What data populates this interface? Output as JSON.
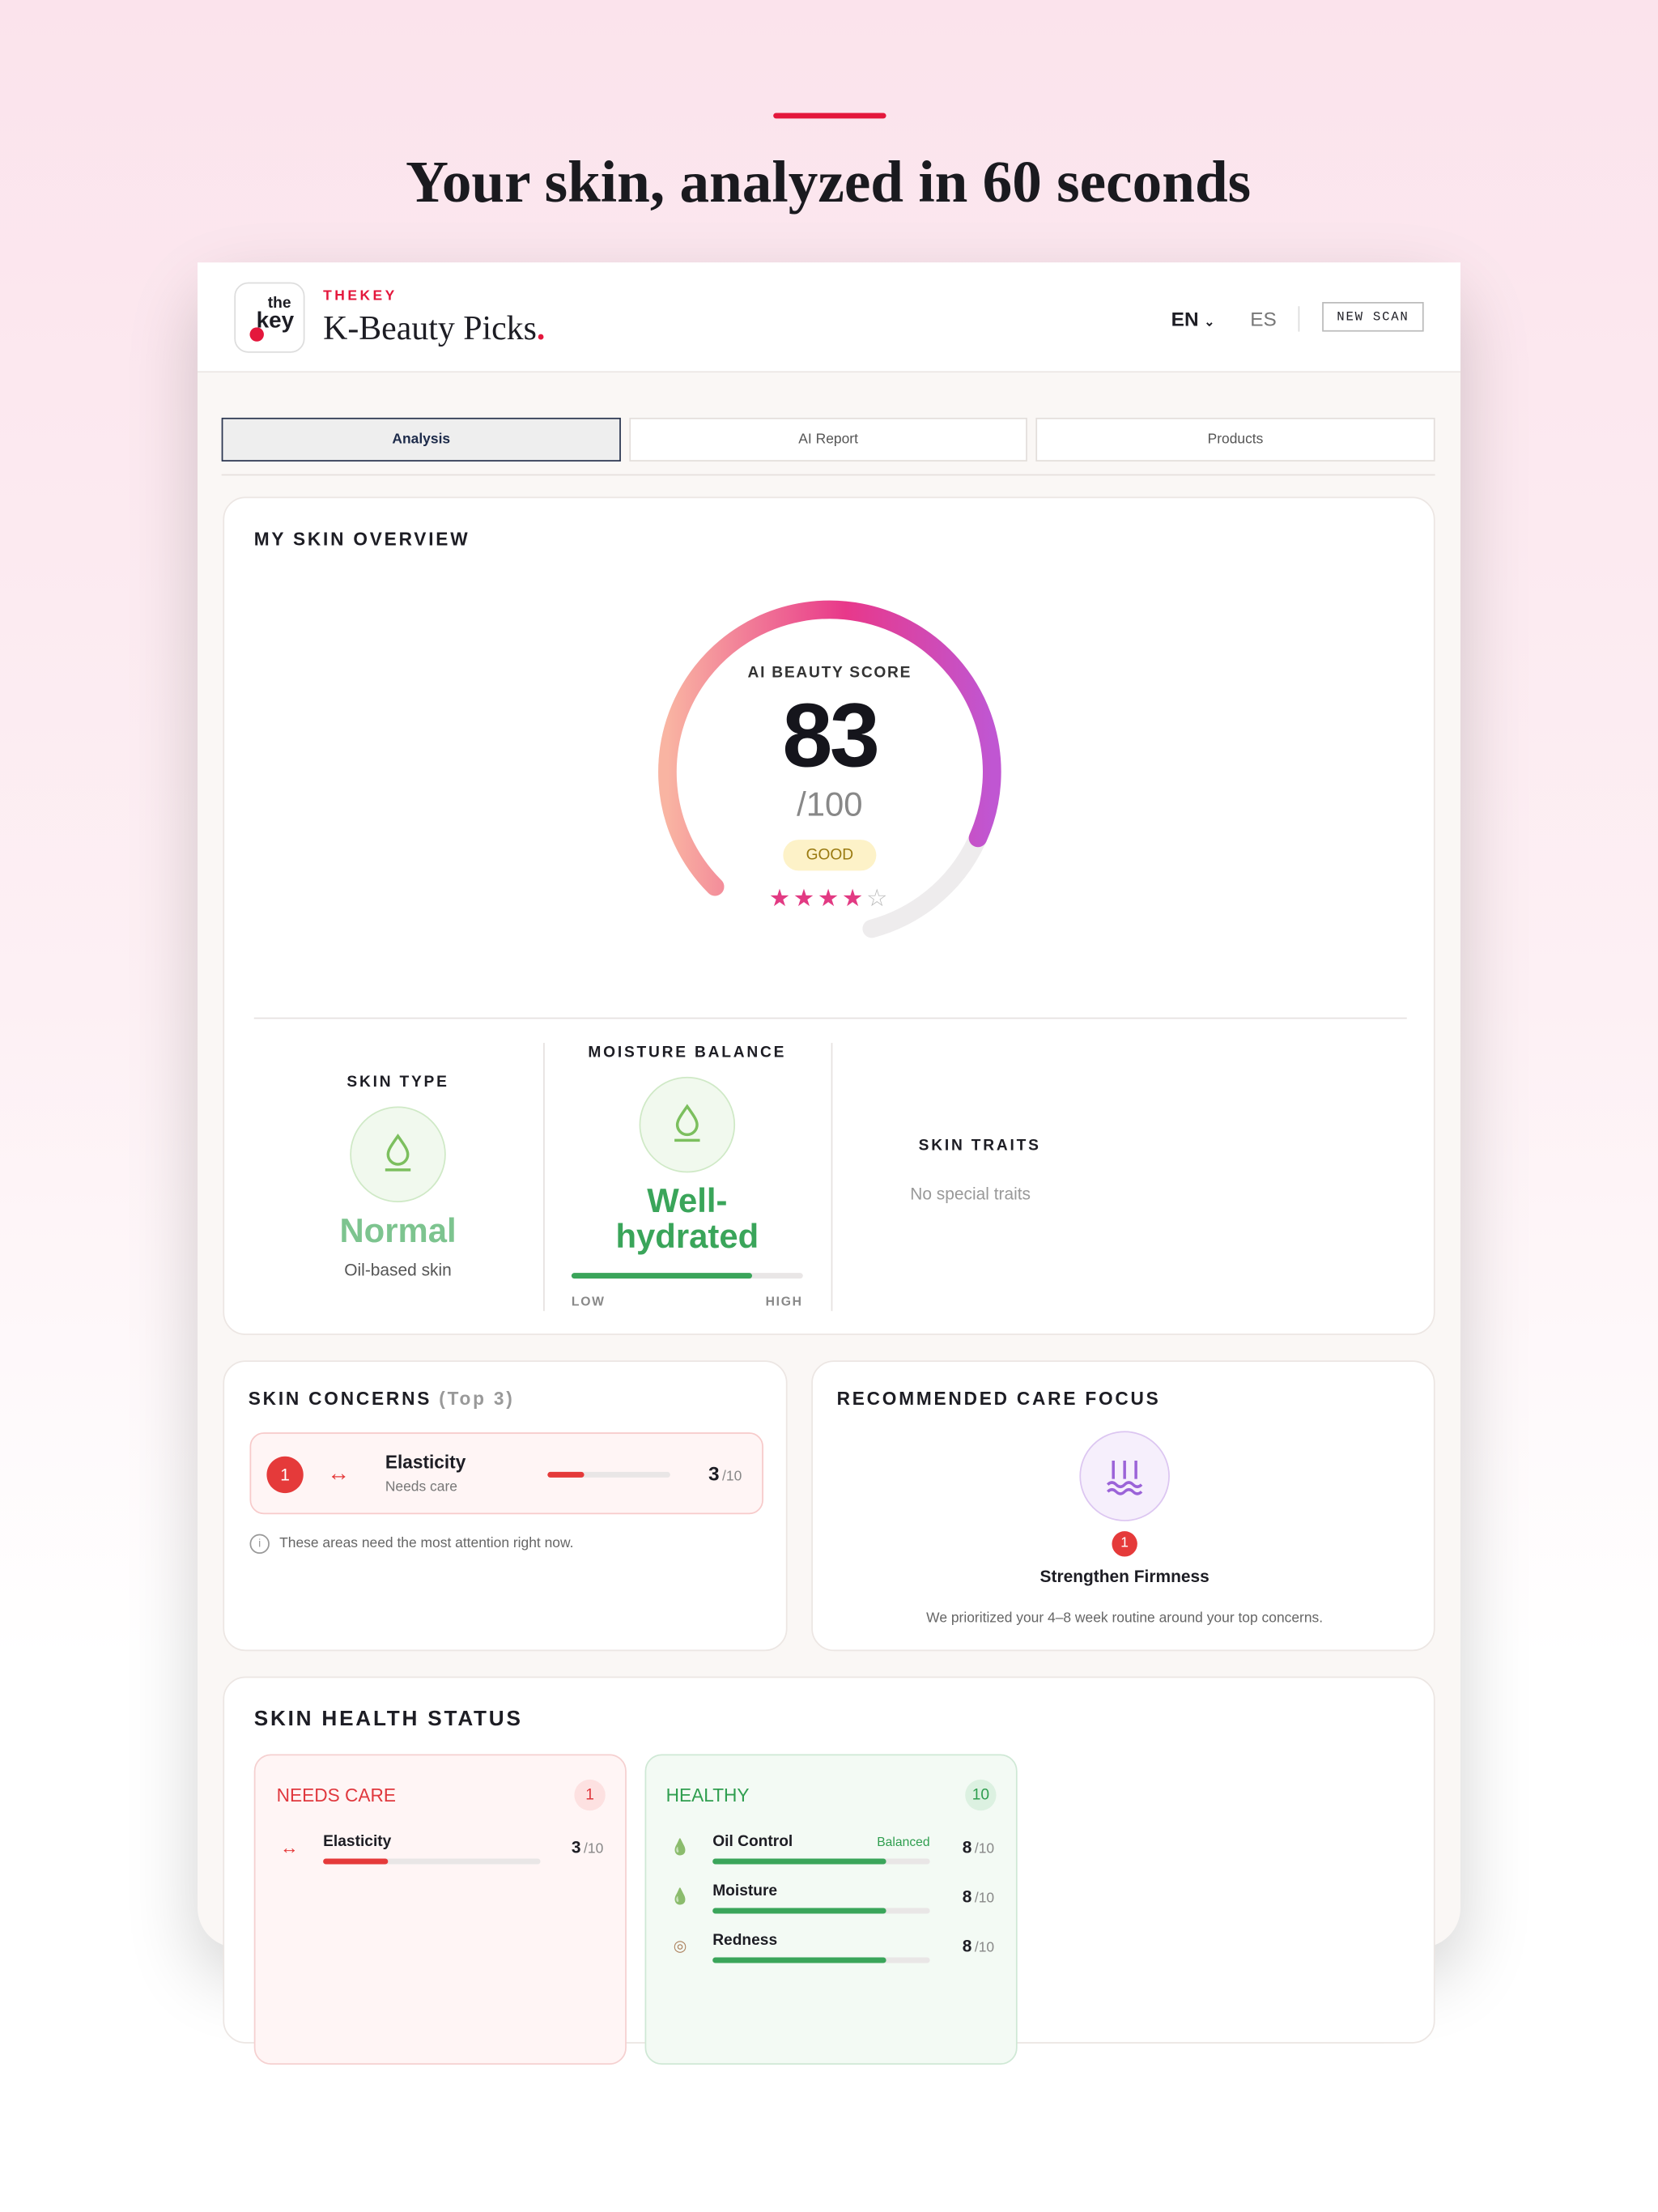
{
  "header": {
    "title": "Your skin, analyzed in 60 seconds"
  },
  "app": {
    "logo": {
      "line1": "the",
      "line2": "key"
    },
    "brand": "THEKEY",
    "name": "K-Beauty Picks",
    "name_mark": ".",
    "languages": [
      "EN",
      "ES"
    ],
    "new_scan": "NEW SCAN"
  },
  "tabs": [
    "Analysis",
    "AI Report",
    "Products"
  ],
  "overview": {
    "title": "MY SKIN OVERVIEW",
    "score_label": "AI BEAUTY SCORE",
    "score": 83,
    "max": {
      "value": 100,
      "label": "/100"
    },
    "grade": "GOOD",
    "rating": 4,
    "rating_max": 5,
    "skin_type": {
      "title": "SKIN TYPE",
      "value": "Normal",
      "note": "Oil-based skin"
    },
    "moisture": {
      "title": "MOISTURE BALANCE",
      "value": "Well-hydrated",
      "low": "LOW",
      "high": "HIGH"
    },
    "traits": {
      "title": "SKIN TRAITS",
      "value": "No special traits"
    }
  },
  "concerns": {
    "title": "SKIN CONCERNS",
    "subtitle": "(Top 3)",
    "items": [
      {
        "rank": 1,
        "name": "Elasticity",
        "status": "Needs care",
        "score": 3,
        "max": {
          "value": 10,
          "label": "/10"
        }
      }
    ],
    "note": "These areas need the most attention right now."
  },
  "care": {
    "title": "RECOMMENDED CARE FOCUS",
    "rank": 1,
    "name": "Strengthen Firmness",
    "note": "We prioritized your 4–8 week routine around your top concerns."
  },
  "health": {
    "title": "SKIN HEALTH STATUS",
    "groups": [
      {
        "name": "NEEDS CARE",
        "count": 1,
        "items": [
          {
            "name": "Elasticity",
            "score": 3,
            "max": {
              "value": 10,
              "label": "/10"
            }
          }
        ]
      },
      {
        "name": "HEALTHY",
        "count": 10,
        "items": [
          {
            "name": "Oil Control",
            "tag": "Balanced",
            "score": 8,
            "max": {
              "value": 10,
              "label": "/10"
            }
          },
          {
            "name": "Moisture",
            "score": 8,
            "max": {
              "value": 10,
              "label": "/10"
            }
          },
          {
            "name": "Redness",
            "score": 8,
            "max": {
              "value": 10,
              "label": "/10"
            }
          }
        ]
      }
    ]
  }
}
